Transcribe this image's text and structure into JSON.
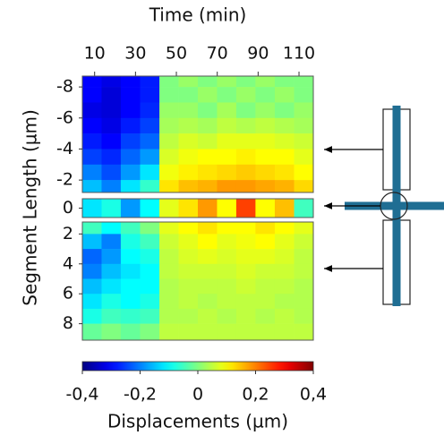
{
  "chart_data": {
    "type": "heatmap",
    "xlabel": "Time (min)",
    "ylabel": "Segment Length (µm)",
    "colorbar_label": "Displacements (µm)",
    "colormap": "jet",
    "xlim": [
      4,
      117
    ],
    "xticks": [
      10,
      30,
      50,
      70,
      90,
      110
    ],
    "x": [
      8.7,
      18.1,
      27.5,
      37,
      46.4,
      55.8,
      65.2,
      74.6,
      84,
      93.4,
      102.9,
      112.3
    ],
    "clim": [
      -0.4,
      0.4
    ],
    "cticks": [
      {
        "value": -0.4,
        "label": "-0,4"
      },
      {
        "value": -0.2,
        "label": "-0,2"
      },
      0,
      {
        "value": 0.2,
        "label": "0,2"
      },
      {
        "value": 0.4,
        "label": "0,4"
      }
    ],
    "panels": [
      {
        "ylim": [
          -8.7,
          -1.2
        ],
        "yticks": [
          -8,
          -6,
          -4,
          -2
        ],
        "y": [
          -8.5,
          -7.5,
          -6.5,
          -5.5,
          -4.5,
          -3.5,
          -2.5,
          -1.5
        ],
        "z": [
          [
            -0.3,
            -0.32,
            -0.3,
            -0.28,
            0,
            0.02,
            0,
            0.02,
            0,
            0.02,
            0,
            0
          ],
          [
            -0.3,
            -0.33,
            -0.3,
            -0.28,
            0,
            0,
            0.02,
            0,
            0.02,
            0,
            0.02,
            0
          ],
          [
            -0.32,
            -0.33,
            -0.3,
            -0.27,
            0.02,
            0.02,
            0,
            0.03,
            0,
            0.02,
            0,
            0.02
          ],
          [
            -0.3,
            -0.32,
            -0.28,
            -0.25,
            0.03,
            0.04,
            0.03,
            0.05,
            0.04,
            0.05,
            0.04,
            0.03
          ],
          [
            -0.28,
            -0.3,
            -0.25,
            -0.22,
            0.05,
            0.07,
            0.06,
            0.08,
            0.08,
            0.08,
            0.07,
            0.06
          ],
          [
            -0.25,
            -0.27,
            -0.22,
            -0.18,
            0.07,
            0.09,
            0.1,
            0.1,
            0.11,
            0.1,
            0.1,
            0.08
          ],
          [
            -0.2,
            -0.24,
            -0.18,
            -0.12,
            0.09,
            0.11,
            0.12,
            0.13,
            0.14,
            0.13,
            0.12,
            0.1
          ],
          [
            -0.15,
            -0.2,
            -0.12,
            -0.06,
            0.12,
            0.15,
            0.16,
            0.18,
            0.18,
            0.17,
            0.16,
            0.13
          ]
        ]
      },
      {
        "ylim": [
          -0.5,
          0.5
        ],
        "yticks": [
          0
        ],
        "y": [
          0
        ],
        "z": [
          [
            -0.12,
            -0.08,
            -0.18,
            -0.1,
            0.08,
            0.12,
            0.18,
            0.1,
            0.25,
            0.1,
            0.15,
            -0.05
          ]
        ]
      },
      {
        "ylim": [
          1.2,
          9.1
        ],
        "yticks": [
          2,
          4,
          6,
          8
        ],
        "y": [
          1.5,
          2.5,
          3.5,
          4.5,
          5.5,
          6.5,
          7.5,
          8.5
        ],
        "z": [
          [
            -0.05,
            -0.1,
            -0.05,
            0,
            0.08,
            0.1,
            0.12,
            0.1,
            0.1,
            0.12,
            0.1,
            0.08
          ],
          [
            -0.15,
            -0.2,
            -0.08,
            -0.05,
            0.06,
            0.08,
            0.1,
            0.08,
            0.09,
            0.1,
            0.08,
            0.06
          ],
          [
            -0.22,
            -0.18,
            -0.1,
            -0.08,
            0.05,
            0.07,
            0.08,
            0.07,
            0.08,
            0.08,
            0.07,
            0.05
          ],
          [
            -0.2,
            -0.15,
            -0.12,
            -0.1,
            0.05,
            0.06,
            0.06,
            0.06,
            0.07,
            0.06,
            0.06,
            0.05
          ],
          [
            -0.15,
            -0.12,
            -0.1,
            -0.1,
            0.04,
            0.05,
            0.05,
            0.05,
            0.06,
            0.05,
            0.05,
            0.04
          ],
          [
            -0.12,
            -0.08,
            -0.1,
            -0.08,
            0.04,
            0.05,
            0.04,
            0.05,
            0.05,
            0.05,
            0.04,
            0.04
          ],
          [
            -0.08,
            -0.05,
            -0.06,
            -0.05,
            0.04,
            0.04,
            0.05,
            0.04,
            0.05,
            0.04,
            0.05,
            0.04
          ],
          [
            -0.02,
            0,
            -0.02,
            0,
            0.05,
            0.05,
            0.05,
            0.05,
            0.05,
            0.05,
            0.05,
            0.05
          ]
        ]
      }
    ]
  }
}
